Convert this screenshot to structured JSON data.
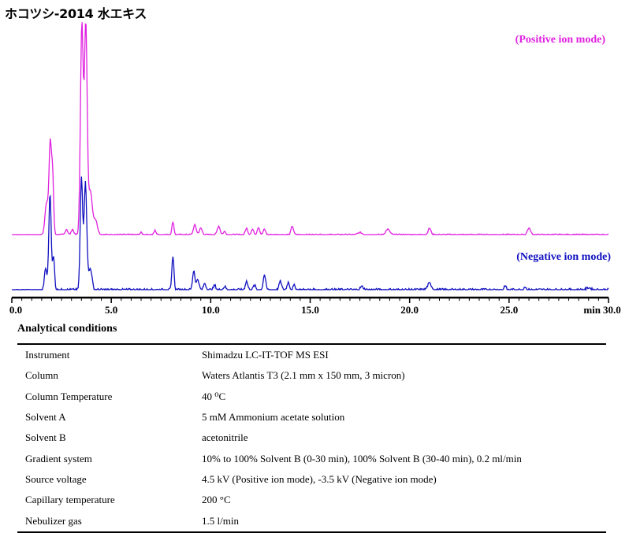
{
  "chart_title": "ホコツシ-2014 水エキス",
  "chart_data": {
    "type": "line",
    "title": "ホコツシ-2014 水エキス",
    "xlabel": "min",
    "xlim": [
      0,
      30
    ],
    "x_ticks": [
      0,
      5,
      10,
      15,
      20,
      25,
      30
    ],
    "x_tick_labels": [
      "0.0",
      "5.0",
      "10.0",
      "15.0",
      "20.0",
      "25.0",
      "30.0"
    ],
    "y_units": "relative intensity (0-1, arbitrary)",
    "series": [
      {
        "name": "(Positive ion mode)",
        "color": "#e020e0",
        "baseline_noise": 0.003,
        "peaks": [
          {
            "x": 1.75,
            "h": 0.15,
            "w": 0.08
          },
          {
            "x": 1.93,
            "h": 0.42,
            "w": 0.06
          },
          {
            "x": 2.05,
            "h": 0.27,
            "w": 0.05
          },
          {
            "x": 2.75,
            "h": 0.025,
            "w": 0.06
          },
          {
            "x": 3.05,
            "h": 0.025,
            "w": 0.06
          },
          {
            "x": 3.52,
            "h": 0.98,
            "w": 0.07
          },
          {
            "x": 3.72,
            "h": 0.98,
            "w": 0.07
          },
          {
            "x": 3.95,
            "h": 0.2,
            "w": 0.09
          },
          {
            "x": 4.2,
            "h": 0.07,
            "w": 0.1
          },
          {
            "x": 6.5,
            "h": 0.01,
            "w": 0.05
          },
          {
            "x": 7.2,
            "h": 0.02,
            "w": 0.05
          },
          {
            "x": 8.1,
            "h": 0.06,
            "w": 0.05
          },
          {
            "x": 9.2,
            "h": 0.045,
            "w": 0.07
          },
          {
            "x": 9.5,
            "h": 0.03,
            "w": 0.07
          },
          {
            "x": 10.4,
            "h": 0.04,
            "w": 0.07
          },
          {
            "x": 10.7,
            "h": 0.015,
            "w": 0.06
          },
          {
            "x": 11.8,
            "h": 0.03,
            "w": 0.06
          },
          {
            "x": 12.1,
            "h": 0.025,
            "w": 0.06
          },
          {
            "x": 12.4,
            "h": 0.035,
            "w": 0.06
          },
          {
            "x": 12.7,
            "h": 0.025,
            "w": 0.06
          },
          {
            "x": 14.1,
            "h": 0.04,
            "w": 0.06
          },
          {
            "x": 17.5,
            "h": 0.01,
            "w": 0.1
          },
          {
            "x": 18.9,
            "h": 0.025,
            "w": 0.1
          },
          {
            "x": 21.0,
            "h": 0.03,
            "w": 0.07
          },
          {
            "x": 26.0,
            "h": 0.03,
            "w": 0.08
          }
        ]
      },
      {
        "name": "(Negative ion mode)",
        "color": "#1010c0",
        "baseline_noise": 0.006,
        "peaks": [
          {
            "x": 1.7,
            "h": 0.1,
            "w": 0.06
          },
          {
            "x": 1.92,
            "h": 0.45,
            "w": 0.06
          },
          {
            "x": 2.1,
            "h": 0.15,
            "w": 0.05
          },
          {
            "x": 3.5,
            "h": 0.52,
            "w": 0.06
          },
          {
            "x": 3.7,
            "h": 0.5,
            "w": 0.07
          },
          {
            "x": 3.95,
            "h": 0.1,
            "w": 0.08
          },
          {
            "x": 8.1,
            "h": 0.16,
            "w": 0.05
          },
          {
            "x": 9.15,
            "h": 0.09,
            "w": 0.06
          },
          {
            "x": 9.35,
            "h": 0.05,
            "w": 0.06
          },
          {
            "x": 9.7,
            "h": 0.03,
            "w": 0.06
          },
          {
            "x": 10.2,
            "h": 0.02,
            "w": 0.06
          },
          {
            "x": 10.7,
            "h": 0.015,
            "w": 0.06
          },
          {
            "x": 11.8,
            "h": 0.04,
            "w": 0.06
          },
          {
            "x": 12.2,
            "h": 0.02,
            "w": 0.06
          },
          {
            "x": 12.7,
            "h": 0.07,
            "w": 0.06
          },
          {
            "x": 13.5,
            "h": 0.04,
            "w": 0.06
          },
          {
            "x": 13.9,
            "h": 0.035,
            "w": 0.06
          },
          {
            "x": 14.2,
            "h": 0.02,
            "w": 0.06
          },
          {
            "x": 17.6,
            "h": 0.015,
            "w": 0.08
          },
          {
            "x": 21.0,
            "h": 0.03,
            "w": 0.1
          },
          {
            "x": 24.8,
            "h": 0.02,
            "w": 0.05
          },
          {
            "x": 25.8,
            "h": 0.015,
            "w": 0.05
          },
          {
            "x": 29.0,
            "h": 0.01,
            "w": 0.1
          }
        ]
      }
    ]
  },
  "conditions": {
    "heading": "Analytical conditions",
    "rows": [
      {
        "param": "Instrument",
        "value": "Shimadzu LC-IT-TOF MS ESI"
      },
      {
        "param": "Column",
        "value": "Waters Atlantis T3 (2.1 mm x 150 mm, 3 micron)"
      },
      {
        "param": "Column Temperature",
        "value": "40 ⁰C"
      },
      {
        "param": "Solvent A",
        "value": "5 mM Ammonium acetate solution"
      },
      {
        "param": "Solvent B",
        "value": "acetonitrile"
      },
      {
        "param": "Gradient system",
        "value": "10% to 100% Solvent B (0-30 min), 100% Solvent B (30-40 min), 0.2 ml/min"
      },
      {
        "param": "Source voltage",
        "value": "4.5 kV (Positive ion mode), -3.5 kV (Negative ion mode)"
      },
      {
        "param": "Capillary temperature",
        "value": "200 °C"
      },
      {
        "param": "Nebulizer gas",
        "value": "1.5 l/min"
      }
    ]
  }
}
